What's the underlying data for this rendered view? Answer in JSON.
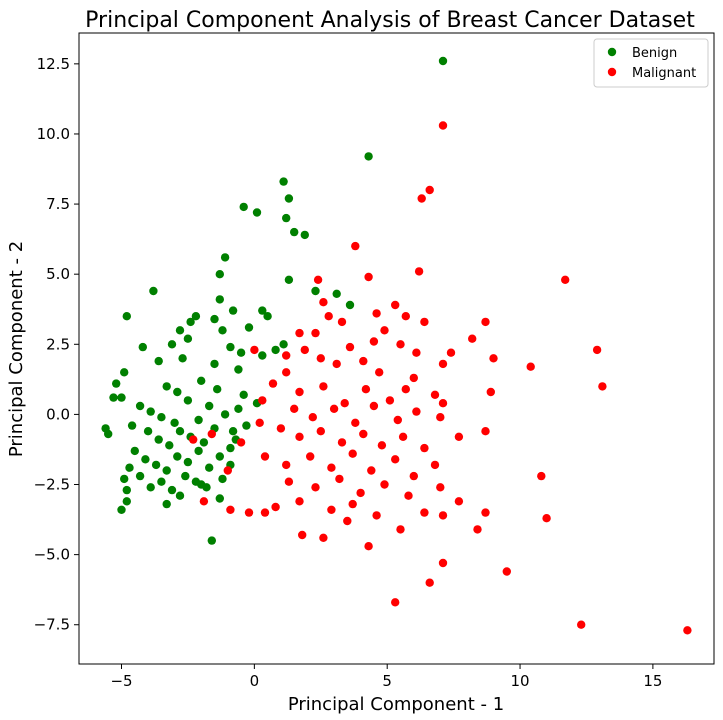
{
  "chart_data": {
    "type": "scatter",
    "title": "Principal Component Analysis of Breast Cancer Dataset",
    "xlabel": "Principal Component - 1",
    "ylabel": "Principal Component - 2",
    "xlim": [
      -6.6,
      17.3
    ],
    "ylim": [
      -8.9,
      13.6
    ],
    "xticks": [
      -5,
      0,
      5,
      10,
      15
    ],
    "xtick_labels": [
      "−5",
      "0",
      "5",
      "10",
      "15"
    ],
    "yticks": [
      -7.5,
      -5.0,
      -2.5,
      0.0,
      2.5,
      5.0,
      7.5,
      10.0,
      12.5
    ],
    "ytick_labels": [
      "−7.5",
      "−5.0",
      "−2.5",
      "0.0",
      "2.5",
      "5.0",
      "7.5",
      "10.0",
      "12.5"
    ],
    "grid": false,
    "legend_position": "top-right",
    "series": [
      {
        "name": "Benign",
        "color": "#008000",
        "points": [
          [
            7.1,
            12.6
          ],
          [
            4.3,
            9.2
          ],
          [
            1.1,
            8.3
          ],
          [
            1.3,
            7.7
          ],
          [
            -0.4,
            7.4
          ],
          [
            0.1,
            7.2
          ],
          [
            1.2,
            7.0
          ],
          [
            1.5,
            6.5
          ],
          [
            1.9,
            6.4
          ],
          [
            -1.1,
            5.6
          ],
          [
            -1.3,
            5.0
          ],
          [
            1.3,
            4.8
          ],
          [
            -3.8,
            4.4
          ],
          [
            -1.3,
            4.1
          ],
          [
            3.1,
            4.3
          ],
          [
            3.6,
            3.9
          ],
          [
            2.3,
            4.4
          ],
          [
            -4.8,
            3.5
          ],
          [
            0.3,
            3.7
          ],
          [
            -0.8,
            3.7
          ],
          [
            0.5,
            3.5
          ],
          [
            -2.4,
            3.3
          ],
          [
            -2.2,
            3.5
          ],
          [
            -1.5,
            3.4
          ],
          [
            -2.8,
            3.0
          ],
          [
            -1.2,
            3.0
          ],
          [
            -0.2,
            3.1
          ],
          [
            -3.1,
            2.5
          ],
          [
            -4.2,
            2.4
          ],
          [
            -2.5,
            2.7
          ],
          [
            -0.9,
            2.4
          ],
          [
            -0.5,
            2.2
          ],
          [
            1.1,
            2.5
          ],
          [
            0.3,
            2.1
          ],
          [
            0.8,
            2.3
          ],
          [
            -3.6,
            1.9
          ],
          [
            -2.7,
            2.0
          ],
          [
            -1.5,
            1.8
          ],
          [
            -0.6,
            1.6
          ],
          [
            -4.9,
            1.5
          ],
          [
            -5.2,
            1.1
          ],
          [
            -5.3,
            0.6
          ],
          [
            -5.0,
            0.6
          ],
          [
            -3.3,
            1.0
          ],
          [
            -2.9,
            0.8
          ],
          [
            -2.0,
            1.2
          ],
          [
            -1.4,
            0.9
          ],
          [
            -0.4,
            0.7
          ],
          [
            0.1,
            0.4
          ],
          [
            -4.3,
            0.3
          ],
          [
            -3.9,
            0.1
          ],
          [
            -3.5,
            -0.1
          ],
          [
            -3.0,
            -0.3
          ],
          [
            -2.5,
            0.5
          ],
          [
            -2.1,
            -0.2
          ],
          [
            -1.7,
            0.3
          ],
          [
            -1.1,
            0.0
          ],
          [
            -0.6,
            0.2
          ],
          [
            -4.6,
            -0.4
          ],
          [
            -4.0,
            -0.6
          ],
          [
            -3.6,
            -0.9
          ],
          [
            -3.2,
            -1.1
          ],
          [
            -2.8,
            -0.6
          ],
          [
            -2.4,
            -0.8
          ],
          [
            -1.9,
            -1.0
          ],
          [
            -1.5,
            -0.5
          ],
          [
            -0.8,
            -0.6
          ],
          [
            -0.3,
            -0.4
          ],
          [
            -5.6,
            -0.5
          ],
          [
            -5.5,
            -0.7
          ],
          [
            -4.5,
            -1.3
          ],
          [
            -4.1,
            -1.6
          ],
          [
            -3.7,
            -1.8
          ],
          [
            -3.3,
            -2.0
          ],
          [
            -2.9,
            -1.5
          ],
          [
            -2.5,
            -1.7
          ],
          [
            -2.1,
            -1.3
          ],
          [
            -1.7,
            -1.9
          ],
          [
            -1.3,
            -1.5
          ],
          [
            -0.9,
            -1.2
          ],
          [
            -4.7,
            -1.9
          ],
          [
            -4.3,
            -2.2
          ],
          [
            -3.9,
            -2.6
          ],
          [
            -3.5,
            -2.4
          ],
          [
            -3.1,
            -2.7
          ],
          [
            -2.6,
            -2.2
          ],
          [
            -2.2,
            -2.4
          ],
          [
            -1.8,
            -2.6
          ],
          [
            -1.2,
            -2.3
          ],
          [
            -4.9,
            -2.3
          ],
          [
            -4.8,
            -2.7
          ],
          [
            -5.0,
            -3.4
          ],
          [
            -4.8,
            -3.1
          ],
          [
            -3.3,
            -3.2
          ],
          [
            -2.8,
            -2.9
          ],
          [
            -2.0,
            -2.5
          ],
          [
            -1.3,
            -3.0
          ],
          [
            -1.6,
            -4.5
          ],
          [
            -0.9,
            -1.8
          ],
          [
            -0.7,
            -0.9
          ]
        ]
      },
      {
        "name": "Malignant",
        "color": "#ff0000",
        "points": [
          [
            7.1,
            10.3
          ],
          [
            6.6,
            8.0
          ],
          [
            6.3,
            7.7
          ],
          [
            3.8,
            6.0
          ],
          [
            4.3,
            4.9
          ],
          [
            6.2,
            5.1
          ],
          [
            11.7,
            4.8
          ],
          [
            2.4,
            4.8
          ],
          [
            2.6,
            4.0
          ],
          [
            4.6,
            3.6
          ],
          [
            5.3,
            3.9
          ],
          [
            2.8,
            3.5
          ],
          [
            3.3,
            3.3
          ],
          [
            4.9,
            3.0
          ],
          [
            5.7,
            3.5
          ],
          [
            6.4,
            3.3
          ],
          [
            8.7,
            3.3
          ],
          [
            1.7,
            2.9
          ],
          [
            2.3,
            2.9
          ],
          [
            3.6,
            2.4
          ],
          [
            4.5,
            2.6
          ],
          [
            5.5,
            2.5
          ],
          [
            6.1,
            2.2
          ],
          [
            7.4,
            2.2
          ],
          [
            8.2,
            2.7
          ],
          [
            9.0,
            2.0
          ],
          [
            12.9,
            2.3
          ],
          [
            1.2,
            2.1
          ],
          [
            1.9,
            2.3
          ],
          [
            2.5,
            2.0
          ],
          [
            3.1,
            1.8
          ],
          [
            4.1,
            1.9
          ],
          [
            4.7,
            1.5
          ],
          [
            6.0,
            1.3
          ],
          [
            7.1,
            1.8
          ],
          [
            10.4,
            1.7
          ],
          [
            13.1,
            1.0
          ],
          [
            0.7,
            1.1
          ],
          [
            1.2,
            1.5
          ],
          [
            1.7,
            0.8
          ],
          [
            2.6,
            1.0
          ],
          [
            3.4,
            0.4
          ],
          [
            4.2,
            0.9
          ],
          [
            5.1,
            0.5
          ],
          [
            5.7,
            0.9
          ],
          [
            6.8,
            0.7
          ],
          [
            8.9,
            0.8
          ],
          [
            0.3,
            0.5
          ],
          [
            1.5,
            0.2
          ],
          [
            2.2,
            -0.1
          ],
          [
            3.0,
            0.2
          ],
          [
            3.8,
            -0.3
          ],
          [
            4.5,
            0.3
          ],
          [
            5.4,
            -0.2
          ],
          [
            6.1,
            0.1
          ],
          [
            7.0,
            -0.1
          ],
          [
            7.1,
            0.4
          ],
          [
            0.2,
            -0.3
          ],
          [
            1.0,
            -0.5
          ],
          [
            1.7,
            -0.8
          ],
          [
            2.5,
            -0.6
          ],
          [
            3.3,
            -1.0
          ],
          [
            4.1,
            -0.7
          ],
          [
            4.8,
            -1.1
          ],
          [
            5.6,
            -0.8
          ],
          [
            6.4,
            -1.2
          ],
          [
            7.7,
            -0.8
          ],
          [
            8.7,
            -0.6
          ],
          [
            0.4,
            -1.5
          ],
          [
            1.2,
            -1.8
          ],
          [
            2.1,
            -1.5
          ],
          [
            2.9,
            -1.9
          ],
          [
            3.7,
            -1.4
          ],
          [
            4.4,
            -2.0
          ],
          [
            5.3,
            -1.6
          ],
          [
            6.0,
            -2.2
          ],
          [
            6.8,
            -1.8
          ],
          [
            1.3,
            -2.4
          ],
          [
            2.3,
            -2.6
          ],
          [
            3.2,
            -2.3
          ],
          [
            4.0,
            -2.8
          ],
          [
            4.9,
            -2.5
          ],
          [
            5.8,
            -2.9
          ],
          [
            7.0,
            -2.6
          ],
          [
            0.8,
            -3.3
          ],
          [
            1.7,
            -3.1
          ],
          [
            2.9,
            -3.4
          ],
          [
            3.7,
            -3.2
          ],
          [
            4.6,
            -3.6
          ],
          [
            6.4,
            -3.5
          ],
          [
            7.1,
            -3.6
          ],
          [
            7.7,
            -3.1
          ],
          [
            8.7,
            -3.5
          ],
          [
            -0.2,
            -3.5
          ],
          [
            0.4,
            -3.5
          ],
          [
            1.8,
            -4.3
          ],
          [
            2.6,
            -4.4
          ],
          [
            3.5,
            -3.8
          ],
          [
            4.3,
            -4.7
          ],
          [
            5.5,
            -4.1
          ],
          [
            8.4,
            -4.1
          ],
          [
            10.8,
            -2.2
          ],
          [
            11.0,
            -3.7
          ],
          [
            7.1,
            -5.3
          ],
          [
            6.6,
            -6.0
          ],
          [
            9.5,
            -5.6
          ],
          [
            5.3,
            -6.7
          ],
          [
            12.3,
            -7.5
          ],
          [
            16.3,
            -7.7
          ],
          [
            -1.9,
            -3.1
          ],
          [
            -0.9,
            -3.4
          ],
          [
            -1.0,
            -2.0
          ],
          [
            -1.6,
            -0.7
          ],
          [
            -0.5,
            -1.0
          ],
          [
            -2.3,
            -0.9
          ],
          [
            0.0,
            2.3
          ]
        ]
      }
    ]
  }
}
